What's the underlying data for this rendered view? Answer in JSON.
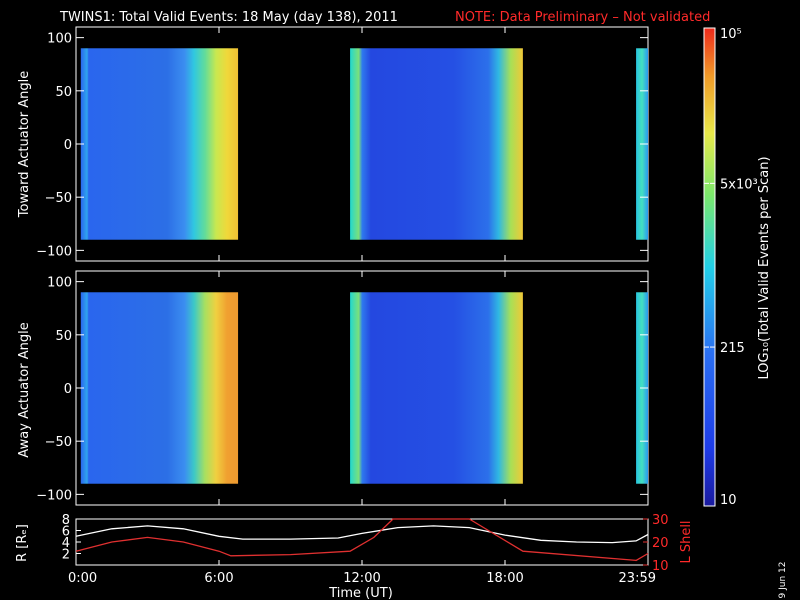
{
  "title": "TWINS1: Total Valid Events: 18 May (day 138), 2011",
  "note": "NOTE: Data Preliminary – Not validated",
  "date_stamp": "9 Jun 12",
  "colors": {
    "note": "#ff2a2a",
    "frame": "#ffffff",
    "rshell": "#ffffff",
    "lshell": "#e03030"
  },
  "chart_data": [
    {
      "type": "heatmap",
      "ylabel": "Toward Actuator Angle",
      "ylim": [
        -110,
        110
      ],
      "yticks": [
        "100",
        "50",
        "0",
        "−50",
        "−100"
      ],
      "ytick_values": [
        100,
        50,
        0,
        -50,
        -100
      ],
      "xlim": [
        0,
        24
      ],
      "angle_range": [
        -90,
        90
      ],
      "segments": [
        {
          "t0": 0.2,
          "t1": 6.8
        },
        {
          "t0": 11.5,
          "t1": 18.75
        },
        {
          "t0": 23.5,
          "t1": 24.0
        }
      ]
    },
    {
      "type": "heatmap",
      "ylabel": "Away Actuator Angle",
      "ylim": [
        -110,
        110
      ],
      "yticks": [
        "100",
        "50",
        "0",
        "−50",
        "−100"
      ],
      "ytick_values": [
        100,
        50,
        0,
        -50,
        -100
      ],
      "xlim": [
        0,
        24
      ],
      "angle_range": [
        -90,
        90
      ],
      "segments": [
        {
          "t0": 0.2,
          "t1": 6.8
        },
        {
          "t0": 11.5,
          "t1": 18.75
        },
        {
          "t0": 23.5,
          "t1": 24.0
        }
      ]
    },
    {
      "type": "line",
      "ylabel_left": "R [Rₑ]",
      "ylabel_right": "L Shell",
      "xlabel": "Time (UT)",
      "xlim": [
        0,
        24
      ],
      "xticks": [
        "0:00",
        "6:00",
        "12:00",
        "18:00",
        "23:59"
      ],
      "xtick_values": [
        0,
        6,
        12,
        18,
        24
      ],
      "yticks_left": [
        "8",
        "6",
        "4",
        "2"
      ],
      "ytick_left_values": [
        8,
        6,
        4,
        2
      ],
      "yticks_right": [
        "30",
        "20",
        "10"
      ],
      "yticks_right_minor": [
        "25",
        "15"
      ],
      "ytick_right_values": [
        30,
        20,
        10
      ],
      "ylim_left": [
        0,
        8
      ],
      "ylim_right": [
        10,
        30
      ],
      "series": [
        {
          "axis": "left",
          "color": "#ffffff",
          "x": [
            0,
            1.5,
            3,
            4.5,
            6,
            7,
            9,
            11,
            12,
            13.5,
            15,
            16.5,
            18,
            19.5,
            21,
            22.5,
            23.5,
            24
          ],
          "y": [
            5.0,
            6.3,
            6.8,
            6.3,
            5.0,
            4.5,
            4.5,
            4.7,
            5.5,
            6.5,
            6.8,
            6.5,
            5.2,
            4.3,
            4.0,
            3.9,
            4.2,
            5.3
          ]
        },
        {
          "axis": "right",
          "color": "#e03030",
          "x": [
            0,
            1.5,
            3,
            4.5,
            6,
            6.5,
            9,
            11.5,
            12.5,
            13.3,
            16.5,
            18.75,
            23.5,
            24
          ],
          "y": [
            16,
            20,
            22,
            20,
            16,
            14,
            14.5,
            16,
            22,
            30,
            30,
            16,
            12,
            15
          ]
        }
      ]
    }
  ],
  "colorbar": {
    "label": "LOG₁₀(Total Valid Events per Scan)",
    "ticks": [
      "10⁵",
      "5x10³",
      "215",
      "10"
    ],
    "tick_positions": [
      5.0,
      3.7,
      2.33,
      1.0
    ],
    "log_range": [
      1.0,
      5.0
    ]
  }
}
